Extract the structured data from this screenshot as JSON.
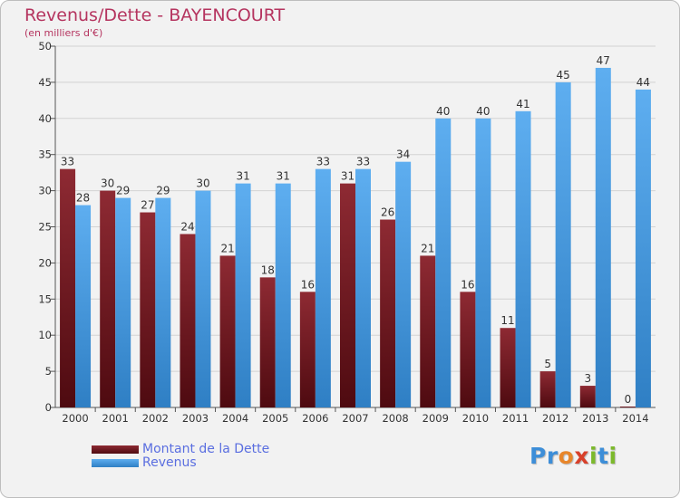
{
  "chart_data": {
    "type": "bar",
    "title": "Revenus/Dette - BAYENCOURT",
    "subtitle": "(en milliers d'€)",
    "categories": [
      "2000",
      "2001",
      "2002",
      "2003",
      "2004",
      "2005",
      "2006",
      "2007",
      "2008",
      "2009",
      "2010",
      "2011",
      "2012",
      "2013",
      "2014"
    ],
    "series": [
      {
        "name": "Montant de la Dette",
        "color": "#7a1c25",
        "values": [
          33,
          30,
          27,
          24,
          21,
          18,
          16,
          31,
          26,
          21,
          16,
          11,
          5,
          3,
          0
        ]
      },
      {
        "name": "Revenus",
        "color": "#4a9fe0",
        "values": [
          28,
          29,
          29,
          30,
          31,
          31,
          33,
          33,
          34,
          40,
          40,
          41,
          45,
          47,
          44
        ]
      }
    ],
    "yticks": [
      0,
      5,
      10,
      15,
      20,
      25,
      30,
      35,
      40,
      45,
      50
    ],
    "ylim": [
      0,
      50
    ],
    "grid": true,
    "legend": "bottom-left"
  },
  "logo": {
    "letters": [
      {
        "ch": "P",
        "color": "#3d8ed8"
      },
      {
        "ch": "r",
        "color": "#3d8ed8"
      },
      {
        "ch": "o",
        "color": "#e8862a"
      },
      {
        "ch": "x",
        "color": "#d8402a"
      },
      {
        "ch": "i",
        "color": "#7cb92c"
      },
      {
        "ch": "t",
        "color": "#3d8ed8"
      },
      {
        "ch": "i",
        "color": "#7cb92c"
      }
    ]
  }
}
